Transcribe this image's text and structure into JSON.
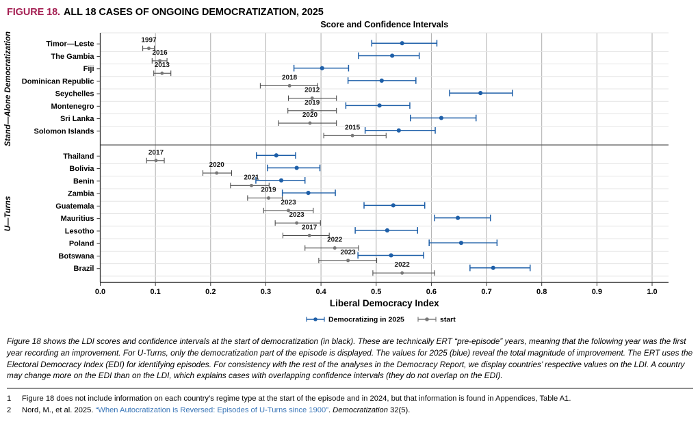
{
  "header": {
    "figure_label": "FIGURE 18.",
    "title": "ALL 18 CASES OF ONGOING DEMOCRATIZATION, 2025"
  },
  "colors": {
    "figure_label_maroon": "#a41f52",
    "democratizing_blue": "#1e5fa8",
    "start_dot_gray": "#787878",
    "start_line_gray": "#4c4c4c",
    "vertical_grid": "#ababab",
    "row_grid": "#e4e4e4",
    "divider": "#595959",
    "axis_spine": "#333333",
    "link_blue": "#3a76b8"
  },
  "chart_data": {
    "type": "scatter",
    "subtype": "dot-and-whisker: point estimates with confidence intervals per country, two series",
    "title": "Score and Confidence Intervals",
    "xlabel": "Liberal Democracy Index",
    "xlim": [
      0.0,
      1.0
    ],
    "xtick_step": 0.1,
    "grid": "vertical gridlines every 0.1; light horizontal row separators; dark divider between groups",
    "legend": {
      "position": "bottom-center",
      "items": [
        {
          "label": "Democratizing in 2025",
          "color": "#1e5fa8"
        },
        {
          "label": "start",
          "color": "#787878"
        }
      ]
    },
    "groups": [
      {
        "label": "Stand—Alone Democratization",
        "countries": [
          {
            "name": "Timor—Leste",
            "start_year": "1997",
            "start": {
              "value": 0.088,
              "lo": 0.077,
              "hi": 0.098
            },
            "democratizing_2025": {
              "value": 0.547,
              "lo": 0.492,
              "hi": 0.61
            }
          },
          {
            "name": "The Gambia",
            "start_year": "2016",
            "start": {
              "value": 0.108,
              "lo": 0.094,
              "hi": 0.121
            },
            "democratizing_2025": {
              "value": 0.529,
              "lo": 0.468,
              "hi": 0.578
            }
          },
          {
            "name": "Fiji",
            "start_year": "2013",
            "start": {
              "value": 0.112,
              "lo": 0.097,
              "hi": 0.128
            },
            "democratizing_2025": {
              "value": 0.402,
              "lo": 0.351,
              "hi": 0.45
            }
          },
          {
            "name": "Dominican Republic",
            "start_year": "2018",
            "start": {
              "value": 0.343,
              "lo": 0.29,
              "hi": 0.394
            },
            "democratizing_2025": {
              "value": 0.51,
              "lo": 0.449,
              "hi": 0.572
            }
          },
          {
            "name": "Seychelles",
            "start_year": "2012",
            "start": {
              "value": 0.384,
              "lo": 0.341,
              "hi": 0.428
            },
            "democratizing_2025": {
              "value": 0.689,
              "lo": 0.633,
              "hi": 0.747
            }
          },
          {
            "name": "Montenegro",
            "start_year": "2019",
            "start": {
              "value": 0.384,
              "lo": 0.34,
              "hi": 0.428
            },
            "democratizing_2025": {
              "value": 0.506,
              "lo": 0.445,
              "hi": 0.561
            }
          },
          {
            "name": "Sri Lanka",
            "start_year": "2020",
            "start": {
              "value": 0.38,
              "lo": 0.323,
              "hi": 0.428
            },
            "democratizing_2025": {
              "value": 0.618,
              "lo": 0.562,
              "hi": 0.681
            }
          },
          {
            "name": "Solomon Islands",
            "start_year": "2015",
            "start": {
              "value": 0.457,
              "lo": 0.405,
              "hi": 0.518
            },
            "democratizing_2025": {
              "value": 0.541,
              "lo": 0.48,
              "hi": 0.607
            }
          }
        ]
      },
      {
        "label": "U—Turns",
        "countries": [
          {
            "name": "Thailand",
            "start_year": "2017",
            "start": {
              "value": 0.101,
              "lo": 0.084,
              "hi": 0.116
            },
            "democratizing_2025": {
              "value": 0.319,
              "lo": 0.283,
              "hi": 0.354
            }
          },
          {
            "name": "Bolivia",
            "start_year": "2020",
            "start": {
              "value": 0.211,
              "lo": 0.186,
              "hi": 0.238
            },
            "democratizing_2025": {
              "value": 0.356,
              "lo": 0.303,
              "hi": 0.398
            }
          },
          {
            "name": "Benin",
            "start_year": "2021",
            "start": {
              "value": 0.274,
              "lo": 0.236,
              "hi": 0.306
            },
            "democratizing_2025": {
              "value": 0.328,
              "lo": 0.282,
              "hi": 0.371
            }
          },
          {
            "name": "Zambia",
            "start_year": "2019",
            "start": {
              "value": 0.305,
              "lo": 0.267,
              "hi": 0.33
            },
            "democratizing_2025": {
              "value": 0.377,
              "lo": 0.33,
              "hi": 0.426
            }
          },
          {
            "name": "Guatemala",
            "start_year": "2023",
            "start": {
              "value": 0.341,
              "lo": 0.296,
              "hi": 0.386
            },
            "democratizing_2025": {
              "value": 0.531,
              "lo": 0.478,
              "hi": 0.588
            }
          },
          {
            "name": "Mauritius",
            "start_year": "2023",
            "start": {
              "value": 0.356,
              "lo": 0.317,
              "hi": 0.399
            },
            "democratizing_2025": {
              "value": 0.648,
              "lo": 0.606,
              "hi": 0.707
            }
          },
          {
            "name": "Lesotho",
            "start_year": "2017",
            "start": {
              "value": 0.379,
              "lo": 0.331,
              "hi": 0.415
            },
            "democratizing_2025": {
              "value": 0.52,
              "lo": 0.462,
              "hi": 0.575
            }
          },
          {
            "name": "Poland",
            "start_year": "2022",
            "start": {
              "value": 0.425,
              "lo": 0.371,
              "hi": 0.468
            },
            "democratizing_2025": {
              "value": 0.654,
              "lo": 0.596,
              "hi": 0.719
            }
          },
          {
            "name": "Botswana",
            "start_year": "2023",
            "start": {
              "value": 0.449,
              "lo": 0.396,
              "hi": 0.501
            },
            "democratizing_2025": {
              "value": 0.527,
              "lo": 0.467,
              "hi": 0.586
            }
          },
          {
            "name": "Brazil",
            "start_year": "2022",
            "start": {
              "value": 0.547,
              "lo": 0.494,
              "hi": 0.606
            },
            "democratizing_2025": {
              "value": 0.712,
              "lo": 0.67,
              "hi": 0.779
            }
          }
        ]
      }
    ]
  },
  "caption": "Figure 18 shows the LDI scores and confidence intervals at the start of democratization (in black). These are technically ERT “pre-episode” years, meaning that the following year was the first year recording an improvement. For U-Turns, only the democratization part of the episode is displayed. The values for 2025 (blue) reveal the total magnitude of improvement. The ERT uses the Electoral Democracy Index (EDI) for identifying episodes. For consistency with the rest of the analyses in the Democracy Report, we display countries’ respective values on the LDI. A country may change more on the EDI than on the LDI, which explains cases with overlapping confidence intervals (they do not overlap on the EDI).",
  "footnotes": [
    {
      "num": "1",
      "text": "Figure 18 does not include information on each country’s regime type at the start of the episode and in 2024, but that information is found in Appendices, Table A1."
    },
    {
      "num": "2",
      "pre": "Nord, M., et al. 2025. ",
      "link": "“When Autocratization is Reversed: Episodes of U-Turns since 1900”",
      "mid": ". ",
      "journal": "Democratization",
      "post": " 32(5)."
    }
  ]
}
